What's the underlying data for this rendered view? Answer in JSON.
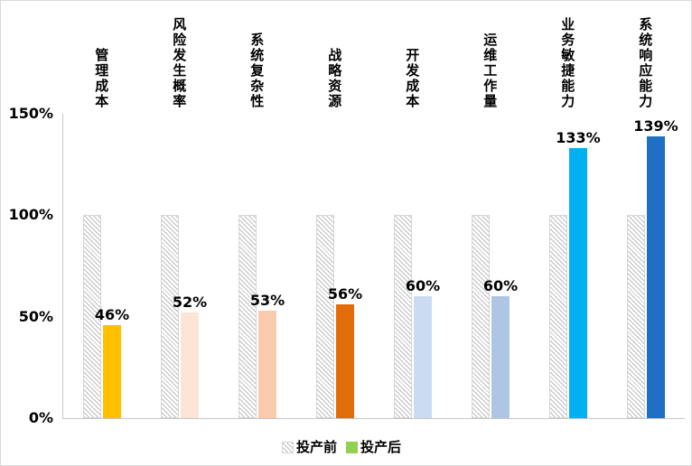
{
  "chart_data": {
    "type": "bar",
    "title": "",
    "xlabel": "",
    "ylabel": "",
    "categories": [
      "管理成本",
      "风险发生概率",
      "系统复杂性",
      "战略资源",
      "开发成本",
      "运维工作量",
      "业务敏捷能力",
      "系统响应能力"
    ],
    "series": [
      {
        "name": "投产前",
        "values": [
          100,
          100,
          100,
          100,
          100,
          100,
          100,
          100
        ],
        "style": "white-with-gray-diagonal-hatch"
      },
      {
        "name": "投产后",
        "values": [
          46,
          52,
          53,
          56,
          60,
          60,
          133,
          139
        ],
        "colors": [
          "#FFC000",
          "#FCE4D6",
          "#F8CBAD",
          "#E36C0A",
          "#CBDCF2",
          "#AEC6E4",
          "#00B0F0",
          "#1F6FC5"
        ]
      }
    ],
    "value_labels": [
      "46%",
      "52%",
      "53%",
      "56%",
      "60%",
      "60%",
      "133%",
      "139%"
    ],
    "ylim": [
      0,
      150
    ],
    "y_ticks": [
      {
        "label": "150%",
        "value": 150
      },
      {
        "label": "100%",
        "value": 100
      },
      {
        "label": "50%",
        "value": 50
      },
      {
        "label": "0%",
        "value": 0
      }
    ],
    "grid": false,
    "legend_position": "bottom",
    "legend_after_swatch_color": "#92D050",
    "axis_color": "#c6c6c6"
  }
}
